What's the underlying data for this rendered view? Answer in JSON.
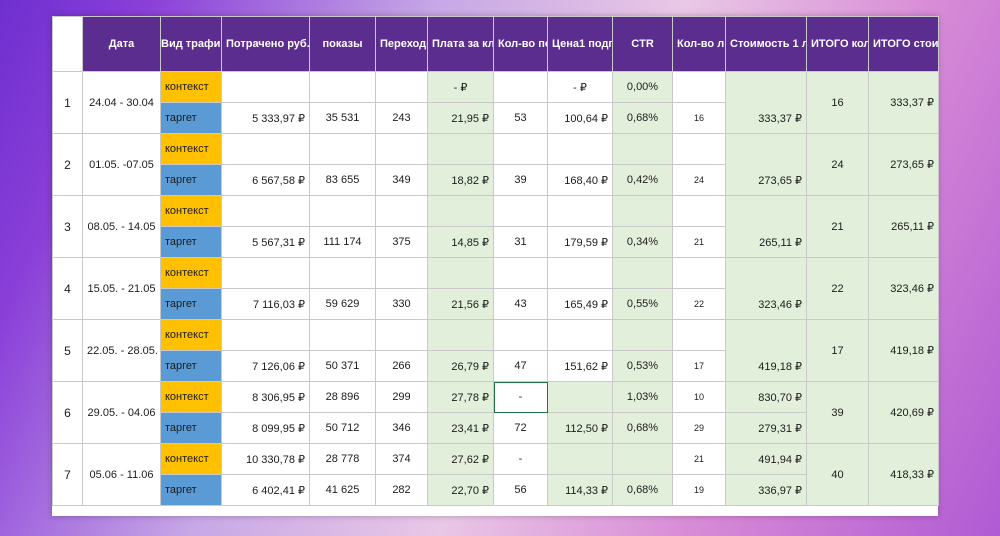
{
  "header": {
    "corner": "",
    "date": "Дата",
    "traffic": "Вид трафик",
    "spent": "Потрачено руб.",
    "shows": "показы",
    "clicks": "Переходы",
    "cpc": "Плата за клик средняя",
    "subs": "Кол-во подписчиков",
    "sub_price": "Цена1 подписчика",
    "ctr": "CTR",
    "leads": "Кол-во лидов",
    "lead_cost": "Стоимость 1 лида",
    "total_leads": "ИТОГО кол-во лидов",
    "total_cost": "ИТОГО стоимость лида"
  },
  "rows": [
    {
      "num": "1",
      "date": "24.04 - 30.04",
      "total_leads": "16",
      "total_cost": "333,37 ₽",
      "k": {
        "traffic": "контекст",
        "spent": "",
        "shows": "",
        "clicks": "",
        "cpc": "-   ₽",
        "subs": "",
        "sub_price": "-   ₽",
        "ctr": "0,00%"
      },
      "t": {
        "traffic": "таргет",
        "spent": "5 333,97 ₽",
        "shows": "35 531",
        "clicks": "243",
        "cpc": "21,95 ₽",
        "subs": "53",
        "sub_price": "100,64 ₽",
        "ctr": "0,68%",
        "leads": "16",
        "lead_cost": "333,37 ₽"
      }
    },
    {
      "num": "2",
      "date": "01.05. -07.05",
      "total_leads": "24",
      "total_cost": "273,65 ₽",
      "k": {
        "traffic": "контекст"
      },
      "t": {
        "traffic": "таргет",
        "spent": "6 567,58 ₽",
        "shows": "83 655",
        "clicks": "349",
        "cpc": "18,82 ₽",
        "subs": "39",
        "sub_price": "168,40 ₽",
        "ctr": "0,42%",
        "leads": "24",
        "lead_cost": "273,65 ₽"
      }
    },
    {
      "num": "3",
      "date": "08.05. - 14.05",
      "total_leads": "21",
      "total_cost": "265,11 ₽",
      "k": {
        "traffic": "контекст"
      },
      "t": {
        "traffic": "таргет",
        "spent": "5 567,31 ₽",
        "shows": "111 174",
        "clicks": "375",
        "cpc": "14,85 ₽",
        "subs": "31",
        "sub_price": "179,59 ₽",
        "ctr": "0,34%",
        "leads": "21",
        "lead_cost": "265,11 ₽"
      }
    },
    {
      "num": "4",
      "date": "15.05. - 21.05",
      "total_leads": "22",
      "total_cost": "323,46 ₽",
      "k": {
        "traffic": "контекст"
      },
      "t": {
        "traffic": "таргет",
        "spent": "7 116,03 ₽",
        "shows": "59 629",
        "clicks": "330",
        "cpc": "21,56 ₽",
        "subs": "43",
        "sub_price": "165,49 ₽",
        "ctr": "0,55%",
        "leads": "22",
        "lead_cost": "323,46 ₽"
      }
    },
    {
      "num": "5",
      "date": "22.05. - 28.05.",
      "total_leads": "17",
      "total_cost": "419,18 ₽",
      "k": {
        "traffic": "контекст"
      },
      "t": {
        "traffic": "таргет",
        "spent": "7 126,06 ₽",
        "shows": "50 371",
        "clicks": "266",
        "cpc": "26,79 ₽",
        "subs": "47",
        "sub_price": "151,62 ₽",
        "ctr": "0,53%",
        "leads": "17",
        "lead_cost": "419,18 ₽"
      }
    },
    {
      "num": "6",
      "date": "29.05. - 04.06",
      "total_leads": "39",
      "total_cost": "420,69 ₽",
      "k": {
        "traffic": "контекст",
        "spent": "8 306,95 ₽",
        "shows": "28 896",
        "clicks": "299",
        "cpc": "27,78 ₽",
        "subs": "-",
        "ctr": "1,03%",
        "leads": "10",
        "lead_cost": "830,70 ₽"
      },
      "t": {
        "traffic": "таргет",
        "spent": "8 099,95 ₽",
        "shows": "50 712",
        "clicks": "346",
        "cpc": "23,41 ₽",
        "subs": "72",
        "sub_price": "112,50 ₽",
        "ctr": "0,68%",
        "leads": "29",
        "lead_cost": "279,31 ₽"
      }
    },
    {
      "num": "7",
      "date": "05.06 - 11.06",
      "total_leads": "40",
      "total_cost": "418,33 ₽",
      "k": {
        "traffic": "контекст",
        "spent": "10 330,78 ₽",
        "shows": "28 778",
        "clicks": "374",
        "cpc": "27,62 ₽",
        "subs": "-",
        "leads": "21",
        "lead_cost": "491,94 ₽"
      },
      "t": {
        "traffic": "таргет",
        "spent": "6 402,41 ₽",
        "shows": "41 625",
        "clicks": "282",
        "cpc": "22,70 ₽",
        "subs": "56",
        "sub_price": "114,33 ₽",
        "ctr": "0,68%",
        "leads": "19",
        "lead_cost": "336,97 ₽"
      }
    }
  ]
}
